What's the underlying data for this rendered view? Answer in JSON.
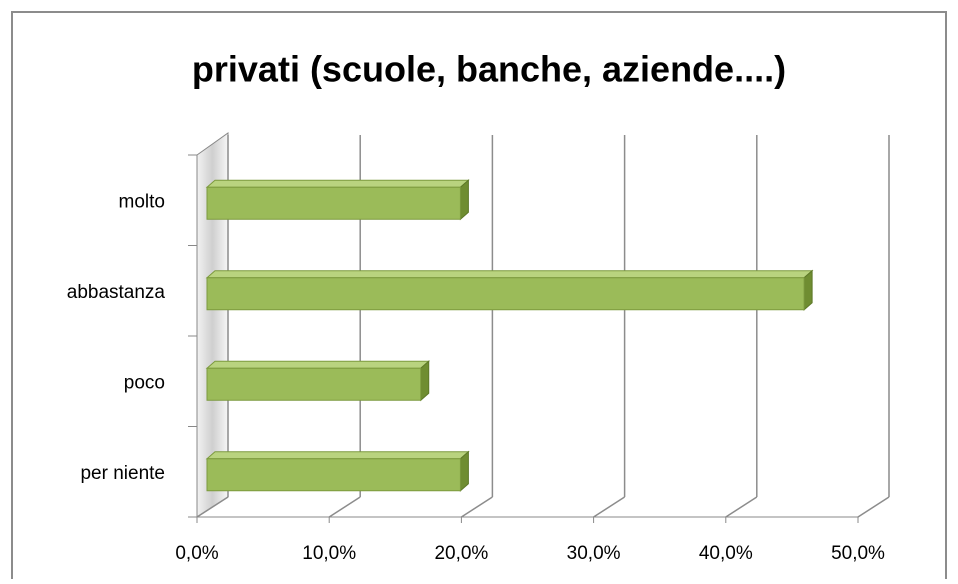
{
  "chart_data": {
    "type": "bar",
    "orientation": "horizontal",
    "title": "privati (scuole, banche, aziende....)",
    "categories": [
      "molto",
      "abbastanza",
      "poco",
      "per niente"
    ],
    "values": [
      20,
      46,
      17,
      20
    ],
    "color": "#9bbb59",
    "xlim": [
      0,
      50
    ],
    "xticks": [
      {
        "value": 0,
        "label": "0,0%"
      },
      {
        "value": 10,
        "label": "10,0%"
      },
      {
        "value": 20,
        "label": "20,0%"
      },
      {
        "value": 30,
        "label": "30,0%"
      },
      {
        "value": 40,
        "label": "40,0%"
      },
      {
        "value": 50,
        "label": "50,0%"
      }
    ],
    "grid": true
  }
}
